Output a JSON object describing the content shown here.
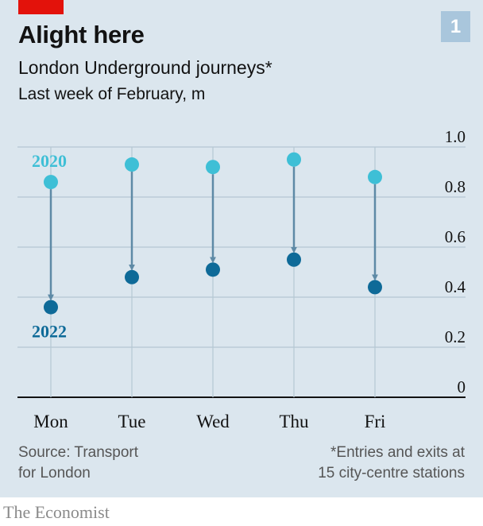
{
  "header": {
    "title": "Alight here",
    "subtitle": "London Underground journeys*",
    "unit_note": "Last week of February, m",
    "badge": "1"
  },
  "footer": {
    "source_line1": "Source: Transport",
    "source_line2": "for London",
    "footnote_line1": "*Entries and exits at",
    "footnote_line2": "15 city-centre stations",
    "brand": "The Economist"
  },
  "colors": {
    "panel": "#dbe6ee",
    "series_2020": "#3ebfd6",
    "series_2022": "#0e6a98",
    "arrow": "#5e8aa6",
    "brand_red": "#e3120b"
  },
  "chart_data": {
    "type": "dumbbell",
    "categories": [
      "Mon",
      "Tue",
      "Wed",
      "Thu",
      "Fri"
    ],
    "series": [
      {
        "name": "2020",
        "values": [
          0.86,
          0.93,
          0.92,
          0.95,
          0.88
        ]
      },
      {
        "name": "2022",
        "values": [
          0.36,
          0.48,
          0.51,
          0.55,
          0.44
        ]
      }
    ],
    "yticks": [
      0,
      0.2,
      0.4,
      0.6,
      0.8,
      1.0
    ],
    "ytick_labels": [
      "0",
      "0.2",
      "0.4",
      "0.6",
      "0.8",
      "1.0"
    ],
    "ylim": [
      0,
      1.0
    ],
    "grid": true,
    "axis_side": "right"
  }
}
